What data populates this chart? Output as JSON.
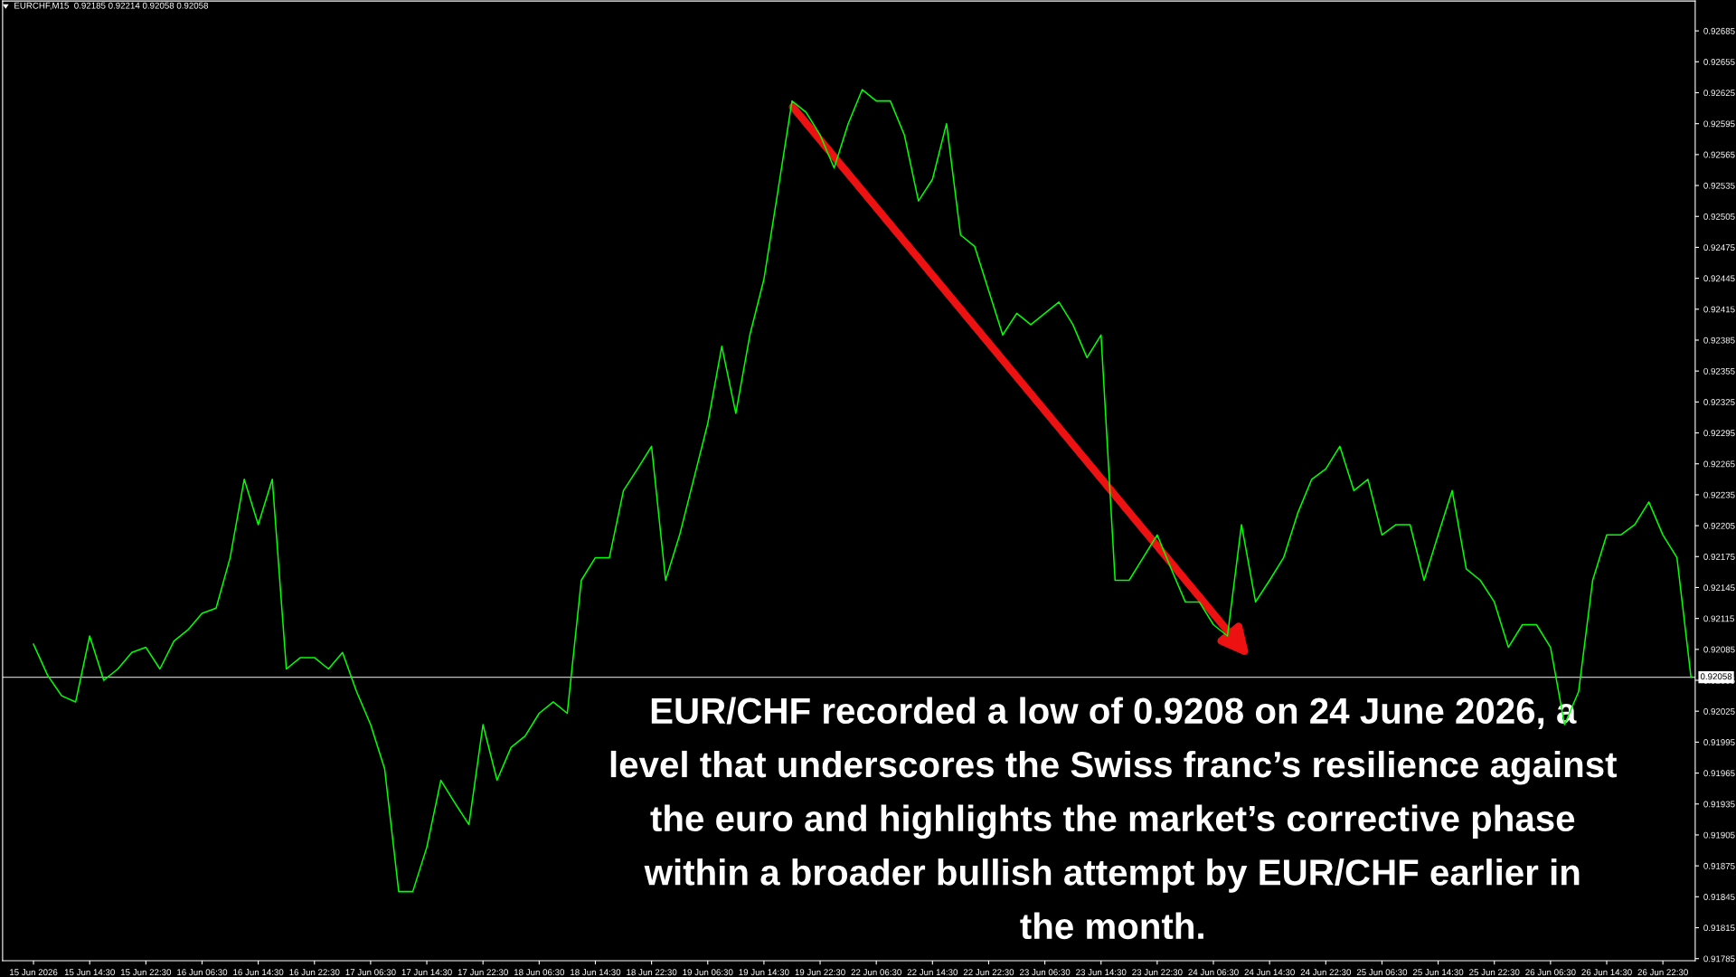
{
  "chart_data": {
    "type": "line",
    "categories": [
      "15 Jun 2026",
      null,
      null,
      null,
      "15 Jun 14:30",
      null,
      null,
      null,
      "15 Jun 22:30",
      null,
      null,
      null,
      "16 Jun 06:30",
      null,
      null,
      null,
      "16 Jun 14:30",
      null,
      null,
      null,
      "16 Jun 22:30",
      null,
      null,
      null,
      "17 Jun 06:30",
      null,
      null,
      null,
      "17 Jun 14:30",
      null,
      null,
      null,
      "17 Jun 22:30",
      null,
      null,
      null,
      "18 Jun 06:30",
      null,
      null,
      null,
      "18 Jun 14:30",
      null,
      null,
      null,
      "18 Jun 22:30",
      null,
      null,
      null,
      "19 Jun 06:30",
      null,
      null,
      null,
      "19 Jun 14:30",
      null,
      null,
      null,
      "19 Jun 22:30",
      null,
      null,
      null,
      "22 Jun 06:30",
      null,
      null,
      null,
      "22 Jun 14:30",
      null,
      null,
      null,
      "22 Jun 22:30",
      null,
      null,
      null,
      "23 Jun 06:30",
      null,
      null,
      null,
      "23 Jun 14:30",
      null,
      null,
      null,
      "23 Jun 22:30",
      null,
      null,
      null,
      "24 Jun 06:30",
      null,
      null,
      null,
      "24 Jun 14:30",
      null,
      null,
      null,
      "24 Jun 22:30",
      null,
      null,
      null,
      "25 Jun 06:30",
      null,
      null,
      null,
      "25 Jun 14:30",
      null,
      null,
      null,
      "25 Jun 22:30",
      null,
      null,
      null,
      "26 Jun 06:30",
      null,
      null,
      null,
      "26 Jun 14:30",
      null,
      null,
      null,
      "26 Jun 22:30",
      null,
      null
    ],
    "series": [
      {
        "color": "#00ff00",
        "values": [
          0.9209,
          0.9206,
          0.9204,
          0.92034,
          0.92098,
          0.92055,
          0.92066,
          0.92082,
          0.92087,
          0.92066,
          0.92093,
          0.92104,
          0.9212,
          0.92125,
          0.92174,
          0.9225,
          0.92206,
          0.9225,
          0.92066,
          0.92077,
          0.92077,
          0.92066,
          0.92082,
          0.92044,
          0.92012,
          0.91969,
          0.9185,
          0.9185,
          0.91893,
          0.91958,
          0.91936,
          0.91915,
          0.92012,
          0.91958,
          0.9199,
          0.92001,
          0.92023,
          0.92034,
          0.92023,
          0.92152,
          0.92174,
          0.92174,
          0.92239,
          0.9226,
          0.92282,
          0.92152,
          0.92196,
          0.9225,
          0.92304,
          0.92379,
          0.92314,
          0.9239,
          0.92444,
          0.9253,
          0.92617,
          0.92606,
          0.92584,
          0.92552,
          0.92595,
          0.92628,
          0.92617,
          0.92617,
          0.92584,
          0.9252,
          0.92541,
          0.92595,
          0.92487,
          0.92476,
          0.92433,
          0.9239,
          0.92411,
          0.924,
          0.92411,
          0.92422,
          0.924,
          0.92368,
          0.9239,
          0.92152,
          0.92152,
          0.92174,
          0.92196,
          0.92163,
          0.92131,
          0.92131,
          0.92109,
          0.92098,
          0.92206,
          0.92131,
          0.92152,
          0.92174,
          0.92217,
          0.9225,
          0.9226,
          0.92282,
          0.92239,
          0.9225,
          0.92196,
          0.92206,
          0.92206,
          0.92152,
          0.92196,
          0.92239,
          0.92163,
          0.92152,
          0.92131,
          0.92087,
          0.92109,
          0.92109,
          0.92087,
          0.92012,
          0.92044,
          0.92152,
          0.92196,
          0.92196,
          0.92206,
          0.92228,
          0.92196,
          0.92174,
          0.92058
        ]
      }
    ],
    "ylim": [
      0.91783,
      0.92714
    ],
    "yticks": [
      0.91785,
      0.91815,
      0.91845,
      0.91875,
      0.91905,
      0.91935,
      0.91965,
      0.91995,
      0.92025,
      0.92055,
      0.92085,
      0.92115,
      0.92145,
      0.92175,
      0.92205,
      0.92235,
      0.92265,
      0.92295,
      0.92325,
      0.92355,
      0.92385,
      0.92415,
      0.92445,
      0.92475,
      0.92505,
      0.92535,
      0.92565,
      0.92595,
      0.92625,
      0.92655,
      0.92685
    ],
    "ref_lines": [
      {
        "axis": "y",
        "value": 0.92058,
        "label": "0.92058",
        "color": "#c0c0c0"
      }
    ],
    "grid": false,
    "legend": false,
    "marker": "none",
    "line_style": "solid",
    "annotations": [
      "EURCHF,M15  0.92185 0.92214 0.92058 0.92058",
      "EUR/CHF recorded a low of 0.9208 on 24 June 2026, a\nlevel that underscores the Swiss franc’s resilience against\nthe euro and highlights the market’s corrective phase\nwithin a broader bullish attempt by EUR/CHF earlier in\nthe month."
    ]
  }
}
